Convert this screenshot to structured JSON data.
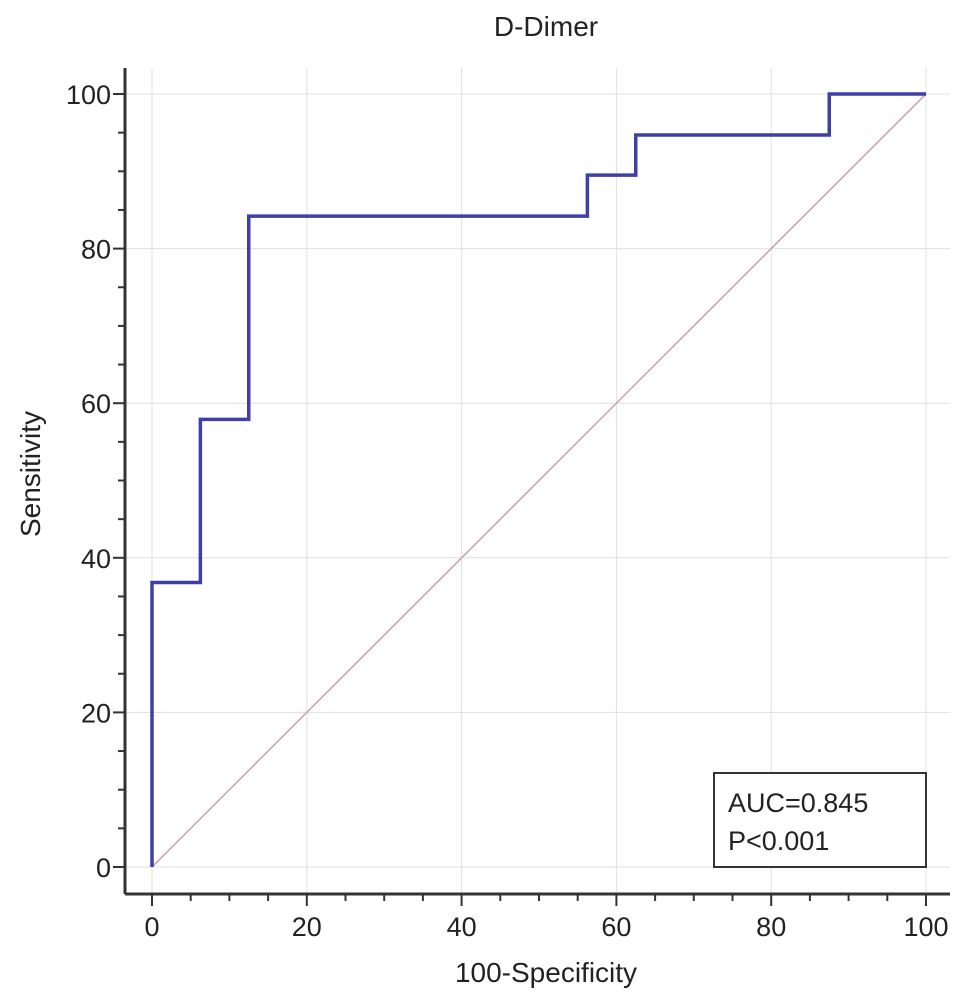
{
  "chart_data": {
    "type": "line",
    "title": "D-Dimer",
    "xlabel": "100-Specificity",
    "ylabel": "Sensitivity",
    "xlim": [
      0,
      100
    ],
    "ylim": [
      0,
      100
    ],
    "xticks": [
      0,
      20,
      40,
      60,
      80,
      100
    ],
    "yticks": [
      0,
      20,
      40,
      60,
      80,
      100
    ],
    "grid": true,
    "series": [
      {
        "color": "#3f3fa8",
        "style": "step",
        "x": [
          0,
          0,
          6.25,
          6.25,
          12.5,
          12.5,
          56.25,
          56.25,
          62.5,
          62.5,
          87.5,
          87.5,
          100
        ],
        "y": [
          0,
          36.8,
          36.8,
          57.9,
          57.9,
          84.2,
          84.2,
          89.5,
          89.5,
          94.7,
          94.7,
          100,
          100
        ]
      },
      {
        "color": "#c9a0a8",
        "style": "reference",
        "x": [
          0,
          100
        ],
        "y": [
          0,
          100
        ]
      }
    ],
    "annotation": {
      "lines": [
        "AUC=0.845",
        "P<0.001"
      ],
      "position": "bottom-right"
    }
  }
}
